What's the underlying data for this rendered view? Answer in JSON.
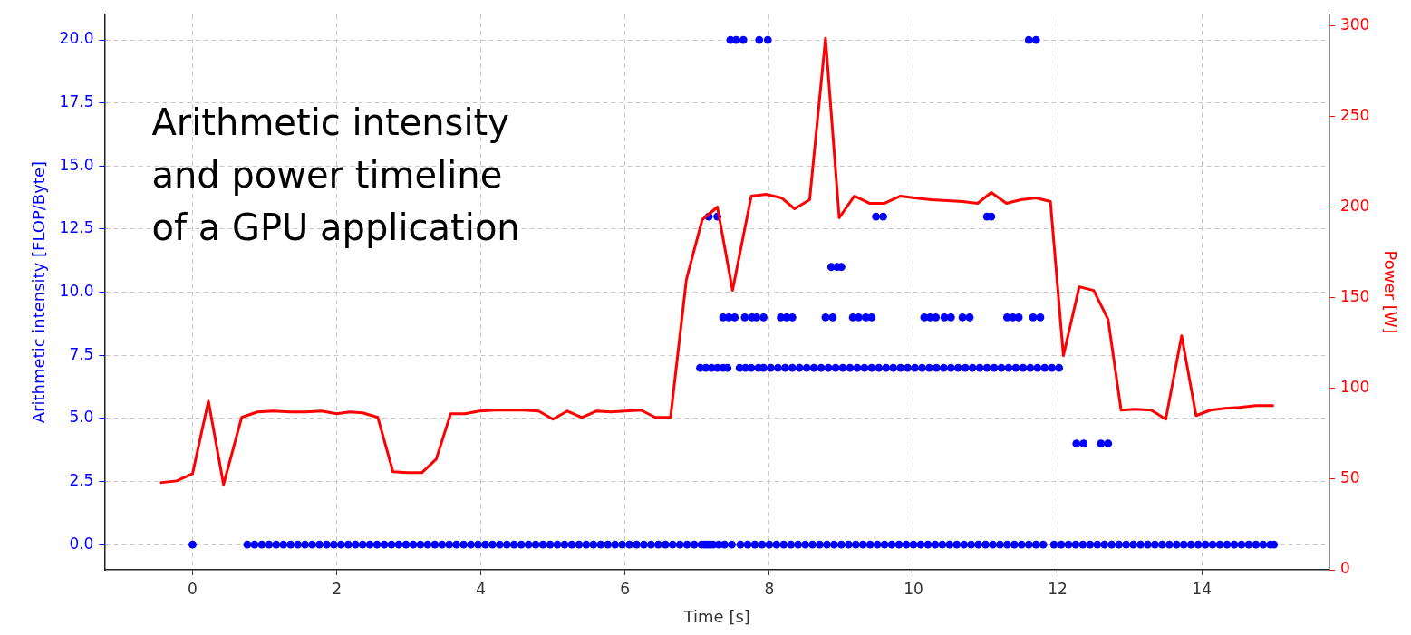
{
  "chart_data": {
    "type": "scatter",
    "title": "Arithmetic intensity\nand power timeline\nof a GPU application",
    "xlabel": "Time [s]",
    "ylabel": "Arithmetic intensity [FLOP/Byte]",
    "y2label": "Power [W]",
    "xlim": [
      -1.22,
      15.77
    ],
    "xticks": [
      0,
      2,
      4,
      6,
      8,
      10,
      12,
      14
    ],
    "ylim": [
      -1,
      21
    ],
    "yticks": [
      {
        "value": 0,
        "label": "0.0"
      },
      {
        "value": 2.5,
        "label": "2.5"
      },
      {
        "value": 5,
        "label": "5.0"
      },
      {
        "value": 7.5,
        "label": "7.5"
      },
      {
        "value": 10,
        "label": "10.0"
      },
      {
        "value": 12.5,
        "label": "12.5"
      },
      {
        "value": 15,
        "label": "15.0"
      },
      {
        "value": 17.5,
        "label": "17.5"
      },
      {
        "value": 20,
        "label": "20.0"
      }
    ],
    "y2lim": [
      0,
      306
    ],
    "y2ticks": [
      0,
      50,
      100,
      150,
      200,
      250,
      300
    ],
    "grid": true,
    "legend": false,
    "series": [
      {
        "type": "scatter",
        "marker": "circle",
        "color": "#0000ff",
        "x": [
          0,
          0.76,
          0.86,
          0.96,
          1.06,
          1.16,
          1.26,
          1.36,
          1.46,
          1.56,
          1.66,
          1.76,
          1.86,
          1.96,
          2.06,
          2.16,
          2.26,
          2.36,
          2.46,
          2.56,
          2.66,
          2.76,
          2.86,
          2.96,
          3.06,
          3.16,
          3.26,
          3.36,
          3.46,
          3.56,
          3.66,
          3.76,
          3.86,
          3.96,
          4.06,
          4.16,
          4.26,
          4.36,
          4.46,
          4.56,
          4.66,
          4.76,
          4.86,
          4.96,
          5.06,
          5.16,
          5.26,
          5.36,
          5.46,
          5.56,
          5.66,
          5.76,
          5.86,
          5.96,
          6.06,
          6.16,
          6.26,
          6.36,
          6.46,
          6.56,
          6.66,
          6.76,
          6.86,
          6.96,
          7.06,
          7.1,
          7.14,
          7.18,
          7.22,
          7.3,
          7.38,
          7.48,
          7.6,
          7.7,
          7.8,
          7.9,
          8.0,
          8.1,
          8.2,
          8.3,
          8.4,
          8.5,
          8.6,
          8.7,
          8.8,
          8.9,
          9.0,
          9.1,
          9.2,
          9.3,
          9.4,
          9.5,
          9.6,
          9.7,
          9.8,
          9.9,
          10.0,
          10.1,
          10.2,
          10.3,
          10.4,
          10.5,
          10.6,
          10.7,
          10.8,
          10.9,
          11.0,
          11.1,
          11.2,
          11.3,
          11.4,
          11.5,
          11.6,
          11.7,
          11.8,
          11.95,
          12.05,
          12.15,
          12.25,
          12.35,
          12.45,
          12.55,
          12.65,
          12.75,
          12.85,
          12.95,
          13.05,
          13.15,
          13.25,
          13.35,
          13.45,
          13.55,
          13.65,
          13.75,
          13.85,
          13.95,
          14.05,
          14.15,
          14.25,
          14.35,
          14.45,
          14.55,
          14.65,
          14.75,
          14.85,
          14.95,
          15.0
        ],
        "values": [
          0,
          0,
          0,
          0,
          0,
          0,
          0,
          0,
          0,
          0,
          0,
          0,
          0,
          0,
          0,
          0,
          0,
          0,
          0,
          0,
          0,
          0,
          0,
          0,
          0,
          0,
          0,
          0,
          0,
          0,
          0,
          0,
          0,
          0,
          0,
          0,
          0,
          0,
          0,
          0,
          0,
          0,
          0,
          0,
          0,
          0,
          0,
          0,
          0,
          0,
          0,
          0,
          0,
          0,
          0,
          0,
          0,
          0,
          0,
          0,
          0,
          0,
          0,
          0,
          0,
          0,
          0,
          0,
          0,
          0,
          0,
          0,
          0,
          0,
          0,
          0,
          0,
          0,
          0,
          0,
          0,
          0,
          0,
          0,
          0,
          0,
          0,
          0,
          0,
          0,
          0,
          0,
          0,
          0,
          0,
          0,
          0,
          0,
          0,
          0,
          0,
          0,
          0,
          0,
          0,
          0,
          0,
          0,
          0,
          0,
          0,
          0,
          0,
          0,
          0,
          0,
          0,
          0,
          0,
          0,
          0,
          0,
          0,
          0,
          0,
          0,
          0,
          0,
          0,
          0,
          0,
          0,
          0,
          0,
          0,
          0,
          0,
          0,
          0,
          0,
          0,
          0,
          0,
          0,
          0,
          0,
          0
        ]
      },
      {
        "type": "scatter",
        "marker": "circle",
        "color": "#0000ff",
        "x": [
          7.04,
          7.12,
          7.2,
          7.28,
          7.36,
          7.42,
          7.59,
          7.67,
          7.75,
          7.85,
          7.92,
          8.02,
          8.12,
          8.22,
          8.32,
          8.42,
          8.52,
          8.62,
          8.72,
          8.82,
          8.92,
          9.02,
          9.12,
          9.22,
          9.32,
          9.42,
          9.52,
          9.62,
          9.72,
          9.82,
          9.92,
          10.02,
          10.12,
          10.22,
          10.32,
          10.42,
          10.52,
          10.62,
          10.72,
          10.82,
          10.92,
          11.02,
          11.12,
          11.22,
          11.32,
          11.42,
          11.52,
          11.62,
          11.72,
          11.82,
          11.92,
          12.02
        ],
        "values": [
          7,
          7,
          7,
          7,
          7,
          7,
          7,
          7,
          7,
          7,
          7,
          7,
          7,
          7,
          7,
          7,
          7,
          7,
          7,
          7,
          7,
          7,
          7,
          7,
          7,
          7,
          7,
          7,
          7,
          7,
          7,
          7,
          7,
          7,
          7,
          7,
          7,
          7,
          7,
          7,
          7,
          7,
          7,
          7,
          7,
          7,
          7,
          7,
          7,
          7,
          7,
          7
        ]
      },
      {
        "type": "scatter",
        "marker": "circle",
        "color": "#0000ff",
        "x": [
          7.36,
          7.44,
          7.52,
          7.66,
          7.76,
          7.82,
          7.92,
          8.16,
          8.24,
          8.32,
          8.78,
          8.88,
          9.16,
          9.24,
          9.34,
          9.42,
          10.15,
          10.23,
          10.31,
          10.43,
          10.52,
          10.68,
          10.78,
          11.3,
          11.38,
          11.46,
          11.66,
          11.76
        ],
        "values": [
          9,
          9,
          9,
          9,
          9,
          9,
          9,
          9,
          9,
          9,
          9,
          9,
          9,
          9,
          9,
          9,
          9,
          9,
          9,
          9,
          9,
          9,
          9,
          9,
          9,
          9,
          9,
          9
        ]
      },
      {
        "type": "scatter",
        "marker": "circle",
        "color": "#0000ff",
        "x": [
          8.86,
          8.94,
          9.0
        ],
        "values": [
          11,
          11,
          11
        ]
      },
      {
        "type": "scatter",
        "marker": "circle",
        "color": "#0000ff",
        "x": [
          7.16,
          7.28,
          9.48,
          9.58,
          11.02,
          11.08
        ],
        "values": [
          13,
          13,
          13,
          13,
          13,
          13
        ]
      },
      {
        "type": "scatter",
        "marker": "circle",
        "color": "#0000ff",
        "x": [
          7.46,
          7.54,
          7.64,
          7.86,
          7.98,
          11.6,
          11.7
        ],
        "values": [
          20,
          20,
          20,
          20,
          20,
          20,
          20
        ]
      },
      {
        "type": "scatter",
        "marker": "circle",
        "color": "#0000ff",
        "x": [
          12.26,
          12.36,
          12.6,
          12.7
        ],
        "values": [
          4,
          4,
          4,
          4
        ]
      },
      {
        "type": "line",
        "axis": "y2",
        "marker": "none",
        "line_style": "solid",
        "color": "#ff0000",
        "x": [
          -0.45,
          -0.22,
          0,
          0.22,
          0.43,
          0.68,
          0.9,
          1.12,
          1.35,
          1.57,
          1.79,
          2.0,
          2.18,
          2.36,
          2.57,
          2.78,
          2.98,
          3.18,
          3.38,
          3.58,
          3.78,
          3.98,
          4.2,
          4.4,
          4.6,
          4.8,
          5.0,
          5.2,
          5.4,
          5.6,
          5.8,
          6.0,
          6.22,
          6.42,
          6.63,
          6.85,
          7.07,
          7.28,
          7.49,
          7.75,
          7.96,
          8.17,
          8.35,
          8.56,
          8.78,
          8.97,
          9.18,
          9.39,
          9.6,
          9.82,
          10.02,
          10.25,
          10.47,
          10.68,
          10.89,
          11.08,
          11.29,
          11.49,
          11.7,
          11.9,
          12.08,
          12.3,
          12.5,
          12.7,
          12.88,
          13.08,
          13.3,
          13.5,
          13.72,
          13.92,
          14.12,
          14.32,
          14.52,
          14.75,
          15.0
        ],
        "values": [
          48,
          49,
          53,
          93,
          47,
          84,
          87,
          87.5,
          87,
          87,
          87.5,
          86,
          87,
          86.5,
          84,
          54,
          53.5,
          53.5,
          61,
          86,
          86,
          87.5,
          88,
          88,
          88,
          87.5,
          83,
          87.5,
          84,
          87.5,
          87,
          87.5,
          88,
          84,
          84,
          160,
          193,
          200,
          154,
          206,
          207,
          205,
          199,
          204,
          293,
          194,
          206,
          202,
          202,
          206,
          205,
          204,
          203.5,
          203,
          202,
          208,
          202,
          204,
          205,
          203,
          118,
          156,
          154,
          138,
          88,
          88.5,
          88,
          83,
          129,
          85,
          88,
          89,
          89.5,
          90.5,
          90.5
        ]
      }
    ]
  }
}
